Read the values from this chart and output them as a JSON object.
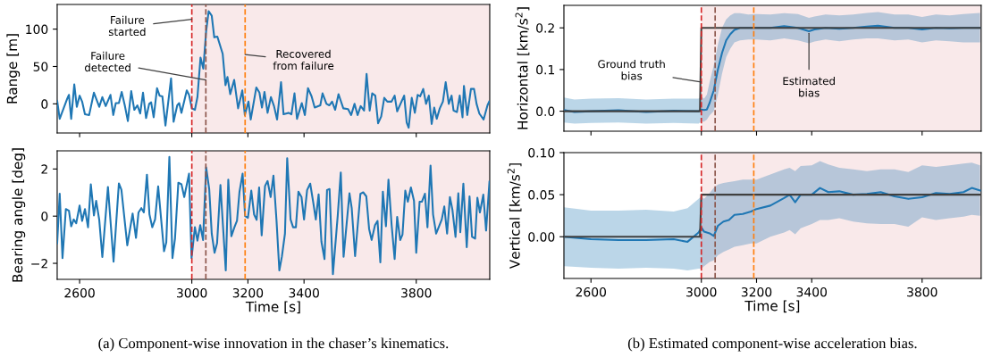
{
  "chart_data": [
    {
      "type": "line",
      "ylabel": "Range [m]",
      "xlim": [
        2520,
        4062
      ],
      "ylim": [
        -39,
        133
      ],
      "xticks": [
        2600,
        3000,
        3200,
        3400,
        3800
      ],
      "yticks": [
        0,
        50,
        100
      ],
      "tick_labels": "y",
      "x": [
        2520,
        2529,
        2556,
        2562,
        2570,
        2581,
        2590,
        2600,
        2609,
        2619,
        2634,
        2651,
        2670,
        2681,
        2693,
        2710,
        2720,
        2729,
        2740,
        2750,
        2761,
        2772,
        2784,
        2795,
        2806,
        2816,
        2826,
        2837,
        2848,
        2855,
        2864,
        2876,
        2885,
        2895,
        2906,
        2926,
        2935,
        2948,
        2955,
        2963,
        2982,
        2990,
        3000,
        3011,
        3020,
        3031,
        3041,
        3051,
        3060,
        3071,
        3080,
        3091,
        3110,
        3120,
        3127,
        3137,
        3151,
        3165,
        3180,
        3189,
        3202,
        3210,
        3230,
        3241,
        3250,
        3259,
        3270,
        3282,
        3293,
        3304,
        3318,
        3327,
        3345,
        3355,
        3366,
        3375,
        3392,
        3403,
        3414,
        3427,
        3438,
        3458,
        3466,
        3480,
        3490,
        3500,
        3511,
        3523,
        3540,
        3557,
        3568,
        3580,
        3591,
        3602,
        3614,
        3623,
        3634,
        3643,
        3654,
        3664,
        3675,
        3686,
        3697,
        3712,
        3723,
        3732,
        3757,
        3766,
        3773,
        3784,
        3795,
        3805,
        3814,
        3825,
        3835,
        3845,
        3855,
        3864,
        3873,
        3884,
        3895,
        3905,
        3916,
        3926,
        3933,
        3945,
        3955,
        3965,
        3970,
        3982,
        3995,
        4006,
        4015,
        4025,
        4040,
        4054,
        4060
      ],
      "values": [
        4,
        -20,
        7,
        12,
        -20,
        26,
        -4,
        11,
        3,
        -14,
        -15,
        15,
        -4,
        9,
        -3,
        12,
        -15,
        1,
        1,
        16,
        -2,
        -23,
        17,
        -8,
        -2,
        -13,
        15,
        -19,
        0,
        2,
        -18,
        21,
        11,
        10,
        -29,
        34,
        -24,
        -2,
        1,
        -12,
        18,
        12,
        -6,
        -8,
        9,
        62,
        47,
        97,
        124,
        118,
        89,
        90,
        67,
        25,
        36,
        13,
        32,
        -6,
        18,
        -15,
        3,
        -21,
        22,
        15,
        -5,
        16,
        -12,
        9,
        -3,
        -21,
        29,
        -14,
        -12,
        -14,
        14,
        -20,
        1,
        -15,
        21,
        10,
        -5,
        -2,
        14,
        0,
        -2,
        3,
        -8,
        13,
        -6,
        -7,
        -15,
        0,
        -15,
        -3,
        -9,
        40,
        -9,
        14,
        11,
        -26,
        -17,
        8,
        3,
        3,
        11,
        -10,
        11,
        -25,
        -32,
        8,
        -12,
        12,
        10,
        20,
        0,
        11,
        -27,
        -5,
        -20,
        -6,
        3,
        29,
        0,
        11,
        -9,
        -11,
        11,
        -18,
        24,
        -15,
        20,
        20,
        0,
        -13,
        -21,
        -2,
        3
      ],
      "color": "#1f77b4",
      "bands": [
        {
          "axis": "x",
          "from": 3000,
          "to": 4062,
          "color": "#f9e9ea"
        }
      ],
      "ref_lines": [
        {
          "axis": "x",
          "value": 3000,
          "color": "#d62728",
          "line_style": "dashed"
        },
        {
          "axis": "x",
          "value": 3050,
          "color": "#8c564b",
          "line_style": "dashed"
        },
        {
          "axis": "x",
          "value": 3190,
          "color": "#ff7f0e",
          "line_style": "dashed"
        }
      ],
      "annotations": [
        {
          "text": "Failure\nstarted",
          "x": 3000,
          "y": 113
        },
        {
          "text": "Failure\ndetected",
          "x": 3050,
          "y": 32
        },
        {
          "text": "Recovered\nfrom failure",
          "x": 3190,
          "y": 66
        }
      ]
    },
    {
      "type": "line",
      "ylabel": "Horizontal [km/s$^{2}$]",
      "xlim": [
        2502,
        4014
      ],
      "ylim": [
        -0.048,
        0.254
      ],
      "xticks": [
        2600,
        3000,
        3200,
        3400,
        3800
      ],
      "yticks": [
        {
          "value": 0,
          "label": "0.0"
        },
        0.1,
        0.2
      ],
      "tick_labels": "y",
      "series": [
        {
          "color": "#1f77b4",
          "x": [
            2502,
            2540,
            2600,
            2700,
            2800,
            2900,
            2990,
            3000,
            3010,
            3020,
            3030,
            3045,
            3060,
            3075,
            3090,
            3105,
            3120,
            3140,
            3170,
            3200,
            3250,
            3300,
            3350,
            3390,
            3410,
            3450,
            3500,
            3550,
            3600,
            3640,
            3700,
            3750,
            3800,
            3850,
            3900,
            3950,
            4010
          ],
          "values": [
            0.003,
            -0.002,
            0.0,
            0.002,
            -0.002,
            0.001,
            0.0,
            0.004,
            0.003,
            0.004,
            0.02,
            0.05,
            0.1,
            0.14,
            0.17,
            0.185,
            0.195,
            0.2,
            0.2,
            0.2,
            0.2,
            0.204,
            0.2,
            0.192,
            0.196,
            0.2,
            0.198,
            0.2,
            0.203,
            0.205,
            0.2,
            0.2,
            0.196,
            0.2,
            0.199,
            0.2,
            0.2
          ],
          "lower": [
            -0.027,
            -0.03,
            -0.028,
            -0.027,
            -0.03,
            -0.028,
            -0.03,
            -0.025,
            -0.025,
            -0.02,
            -0.01,
            0.0,
            0.04,
            0.09,
            0.13,
            0.15,
            0.165,
            0.17,
            0.172,
            0.172,
            0.17,
            0.175,
            0.17,
            0.163,
            0.167,
            0.172,
            0.168,
            0.172,
            0.175,
            0.175,
            0.17,
            0.172,
            0.165,
            0.17,
            0.168,
            0.165,
            0.165
          ],
          "upper": [
            0.033,
            0.028,
            0.03,
            0.031,
            0.028,
            0.03,
            0.03,
            0.035,
            0.03,
            0.04,
            0.07,
            0.11,
            0.16,
            0.2,
            0.22,
            0.23,
            0.235,
            0.235,
            0.232,
            0.233,
            0.232,
            0.235,
            0.233,
            0.224,
            0.227,
            0.232,
            0.23,
            0.232,
            0.236,
            0.238,
            0.232,
            0.232,
            0.226,
            0.232,
            0.23,
            0.233,
            0.236
          ]
        },
        {
          "color": "#404040",
          "x": [
            2502,
            2995,
            3000,
            4014
          ],
          "values": [
            0,
            0,
            0.2,
            0.2
          ]
        }
      ],
      "bands": [
        {
          "axis": "x",
          "from": 3000,
          "to": 4014,
          "color": "#f9e9ea"
        }
      ],
      "ref_lines": [
        {
          "axis": "x",
          "value": 3000,
          "color": "#d62728",
          "line_style": "dashed"
        },
        {
          "axis": "x",
          "value": 3050,
          "color": "#8c564b",
          "line_style": "dashed"
        },
        {
          "axis": "x",
          "value": 3190,
          "color": "#ff7f0e",
          "line_style": "dashed"
        }
      ],
      "annotations": [
        {
          "text": "Ground truth\nbias",
          "x": 2999,
          "y": 0.07
        },
        {
          "text": "Estimated\nbias",
          "x": 3390,
          "y": 0.187
        }
      ]
    },
    {
      "type": "line",
      "ylabel": "Bearing angle [deg]",
      "xlabel": "Time [s]",
      "xlim": [
        2520,
        4062
      ],
      "ylim": [
        -2.68,
        2.77
      ],
      "xticks": [
        2600,
        3000,
        3200,
        3400,
        3800
      ],
      "yticks": [
        {
          "value": -2,
          "label": "−2"
        },
        0,
        2
      ],
      "x": [
        2520,
        2529,
        2539,
        2551,
        2562,
        2570,
        2579,
        2588,
        2600,
        2609,
        2619,
        2630,
        2640,
        2651,
        2659,
        2670,
        2681,
        2701,
        2721,
        2740,
        2749,
        2770,
        2789,
        2801,
        2810,
        2820,
        2829,
        2840,
        2849,
        2859,
        2869,
        2880,
        2901,
        2909,
        2920,
        2931,
        2940,
        2952,
        2963,
        2973,
        2990,
        2999,
        3011,
        3020,
        3030,
        3040,
        3051,
        3062,
        3071,
        3081,
        3090,
        3102,
        3121,
        3130,
        3141,
        3153,
        3161,
        3170,
        3181,
        3190,
        3200,
        3212,
        3222,
        3231,
        3240,
        3249,
        3261,
        3270,
        3281,
        3291,
        3302,
        3312,
        3321,
        3332,
        3340,
        3352,
        3361,
        3371,
        3380,
        3391,
        3400,
        3411,
        3422,
        3433,
        3442,
        3452,
        3462,
        3473,
        3482,
        3491,
        3503,
        3520,
        3531,
        3541,
        3562,
        3570,
        3582,
        3601,
        3611,
        3622,
        3632,
        3641,
        3653,
        3662,
        3672,
        3681,
        3692,
        3701,
        3712,
        3723,
        3732,
        3743,
        3751,
        3761,
        3770,
        3781,
        3792,
        3800,
        3812,
        3820,
        3831,
        3840,
        3851,
        3860,
        3871,
        3880,
        3891,
        3900,
        3910,
        3920,
        3929,
        3940,
        3950,
        3957,
        3968,
        3980,
        3990,
        3999,
        4010,
        4018,
        4027,
        4039,
        4049,
        4061
      ],
      "values": [
        -1.15,
        0.95,
        -1.78,
        0.3,
        0.23,
        -0.43,
        -0.14,
        -0.3,
        0.45,
        -0.2,
        0.3,
        -0.47,
        1.35,
        0.03,
        0.65,
        -0.16,
        -1.73,
        1.24,
        -1.93,
        1.39,
        1.12,
        -1.24,
        0.11,
        -0.92,
        0.16,
        0.34,
        0.16,
        1.76,
        0.07,
        -0.47,
        -0.14,
        1.26,
        -1.49,
        -1.11,
        2.51,
        -1.78,
        -0.95,
        1.42,
        1.35,
        0.81,
        1.8,
        -1.78,
        -0.47,
        -1.04,
        -0.38,
        -1.01,
        2.07,
        1.15,
        -0.74,
        -1.55,
        -1.15,
        1.32,
        -2.3,
        1.55,
        -0.85,
        -0.43,
        -0.2,
        1.04,
        1.8,
        0,
        -0.07,
        1.08,
        0.07,
        -0.16,
        1.22,
        -0.81,
        1.28,
        1.49,
        0.81,
        1.72,
        -0.2,
        -2.3,
        -1.72,
        -0.74,
        2.46,
        -0.14,
        -0.47,
        -0.47,
        1.04,
        0.81,
        -0.14,
        1.11,
        1.38,
        0.57,
        -0.14,
        0.92,
        -1.08,
        -1.82,
        1.11,
        1.15,
        -2.46,
        0,
        1.85,
        -1.72,
        0.97,
        0.34,
        -1.69,
        0.95,
        1.01,
        0.84,
        -0.54,
        -1.01,
        -0.38,
        -0.2,
        -1.96,
        1.04,
        -0.43,
        1.55,
        -0.34,
        -1.82,
        -0.03,
        -1.01,
        -0.78,
        1.08,
        0.61,
        1.22,
        0.65,
        -1.55,
        0.61,
        0.61,
        0.95,
        -0.47,
        2.14,
        0.07,
        -0.74,
        -0.47,
        -0.14,
        0.41,
        -0.74,
        0.81,
        0.27,
        -0.88,
        0.97,
        -0.68,
        1.38,
        -1.32,
        0.84,
        -0.88,
        -0.95,
        0.78,
        0.16,
        0.91,
        -0.61,
        1.46
      ],
      "color": "#1f77b4",
      "bands": [
        {
          "axis": "x",
          "from": 3000,
          "to": 4062,
          "color": "#f9e9ea"
        }
      ],
      "ref_lines": [
        {
          "axis": "x",
          "value": 3000,
          "color": "#d62728",
          "line_style": "dashed"
        },
        {
          "axis": "x",
          "value": 3050,
          "color": "#8c564b",
          "line_style": "dashed"
        },
        {
          "axis": "x",
          "value": 3190,
          "color": "#ff7f0e",
          "line_style": "dashed"
        }
      ],
      "annotations": [
        "(a) Component-wise innovation in the chaser’s kinematics."
      ]
    },
    {
      "type": "line",
      "ylabel": "Vertical [km/s$^{2}$]",
      "xlabel": "Time [s]",
      "xlim": [
        2502,
        4014
      ],
      "ylim": [
        -0.0496,
        0.1
      ],
      "xticks": [
        2600,
        3000,
        3200,
        3400,
        3800
      ],
      "yticks": [
        {
          "value": 0,
          "label": "0.00"
        },
        0.05,
        {
          "value": 0.1,
          "label": "0.10"
        }
      ],
      "series": [
        {
          "color": "#1f77b4",
          "x": [
            2502,
            2600,
            2700,
            2800,
            2900,
            2950,
            2990,
            3000,
            3010,
            3030,
            3045,
            3060,
            3080,
            3100,
            3120,
            3150,
            3180,
            3200,
            3250,
            3300,
            3320,
            3340,
            3360,
            3400,
            3430,
            3460,
            3500,
            3550,
            3600,
            3650,
            3700,
            3750,
            3800,
            3850,
            3900,
            3950,
            3980,
            4010
          ],
          "values": [
            0.0,
            -0.003,
            -0.004,
            -0.004,
            -0.003,
            -0.006,
            0.005,
            0.011,
            0.006,
            0.004,
            0.001,
            0.013,
            0.018,
            0.02,
            0.026,
            0.027,
            0.03,
            0.033,
            0.037,
            0.046,
            0.05,
            0.041,
            0.05,
            0.05,
            0.058,
            0.053,
            0.054,
            0.05,
            0.051,
            0.053,
            0.048,
            0.045,
            0.047,
            0.052,
            0.051,
            0.053,
            0.058,
            0.055
          ],
          "lower": [
            -0.035,
            -0.037,
            -0.038,
            -0.037,
            -0.038,
            -0.04,
            -0.038,
            -0.038,
            -0.035,
            -0.03,
            -0.028,
            -0.022,
            -0.018,
            -0.015,
            -0.012,
            -0.01,
            -0.008,
            -0.008,
            0.0,
            0.005,
            0.008,
            0.003,
            0.01,
            0.015,
            0.02,
            0.02,
            0.022,
            0.018,
            0.016,
            0.015,
            0.015,
            0.012,
            0.023,
            0.02,
            0.022,
            0.024,
            0.026,
            0.025
          ],
          "upper": [
            0.035,
            0.031,
            0.031,
            0.032,
            0.03,
            0.034,
            0.045,
            0.048,
            0.045,
            0.052,
            0.058,
            0.062,
            0.064,
            0.065,
            0.066,
            0.068,
            0.068,
            0.068,
            0.074,
            0.08,
            0.082,
            0.078,
            0.084,
            0.085,
            0.09,
            0.086,
            0.082,
            0.08,
            0.078,
            0.08,
            0.08,
            0.077,
            0.085,
            0.083,
            0.085,
            0.087,
            0.088,
            0.085
          ]
        },
        {
          "color": "#404040",
          "x": [
            2502,
            2995,
            3000,
            4014
          ],
          "values": [
            0,
            0,
            0.05,
            0.05
          ]
        }
      ],
      "bands": [
        {
          "axis": "x",
          "from": 3000,
          "to": 4014,
          "color": "#f9e9ea"
        }
      ],
      "ref_lines": [
        {
          "axis": "x",
          "value": 3000,
          "color": "#d62728",
          "line_style": "dashed"
        },
        {
          "axis": "x",
          "value": 3050,
          "color": "#8c564b",
          "line_style": "dashed"
        },
        {
          "axis": "x",
          "value": 3190,
          "color": "#ff7f0e",
          "line_style": "dashed"
        }
      ],
      "annotations": [
        "(b) Estimated component-wise acceleration bias."
      ]
    }
  ]
}
